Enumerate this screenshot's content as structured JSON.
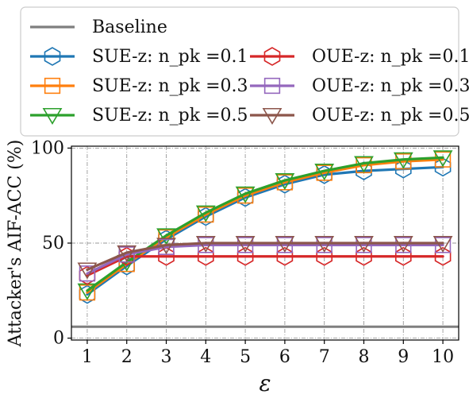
{
  "chart_data": {
    "type": "line",
    "title": "",
    "xlabel": "ε",
    "ylabel": "Attacker's AIF-ACC (%)",
    "x": [
      1,
      2,
      3,
      4,
      5,
      6,
      7,
      8,
      9,
      10
    ],
    "xlim": [
      0.6,
      10.4
    ],
    "ylim": [
      -1,
      101
    ],
    "yticks": [
      0,
      50,
      100
    ],
    "grid": true,
    "legend_position": "top",
    "baseline": {
      "name": "Baseline",
      "value": 6,
      "color": "#7f7f7f"
    },
    "series": [
      {
        "name": "SUE-z: n_pk =0.1",
        "marker": "hexagon",
        "color": "#1f77b4",
        "values": [
          23,
          38,
          52,
          64,
          74,
          81,
          86,
          88,
          89,
          90
        ]
      },
      {
        "name": "SUE-z: n_pk =0.3",
        "marker": "square",
        "color": "#ff7f0e",
        "values": [
          24,
          39,
          53,
          65,
          75,
          82,
          87,
          91,
          93,
          94
        ]
      },
      {
        "name": "SUE-z: n_pk =0.5",
        "marker": "triangle-down",
        "color": "#2ca02c",
        "values": [
          25,
          40,
          54,
          66,
          76,
          83,
          88,
          92,
          94,
          95
        ]
      },
      {
        "name": "OUE-z: n_pk =0.1",
        "marker": "hexagon",
        "color": "#d62728",
        "values": [
          33,
          43,
          43,
          43,
          43,
          43,
          43,
          43,
          43,
          43
        ]
      },
      {
        "name": "OUE-z: n_pk =0.3",
        "marker": "square",
        "color": "#9467bd",
        "values": [
          34,
          44,
          48,
          49,
          49,
          49,
          49,
          49,
          49,
          49
        ]
      },
      {
        "name": "OUE-z: n_pk =0.5",
        "marker": "triangle-down",
        "color": "#8c564b",
        "values": [
          36,
          45,
          49,
          50,
          50,
          50,
          50,
          50,
          50,
          50
        ]
      }
    ]
  }
}
